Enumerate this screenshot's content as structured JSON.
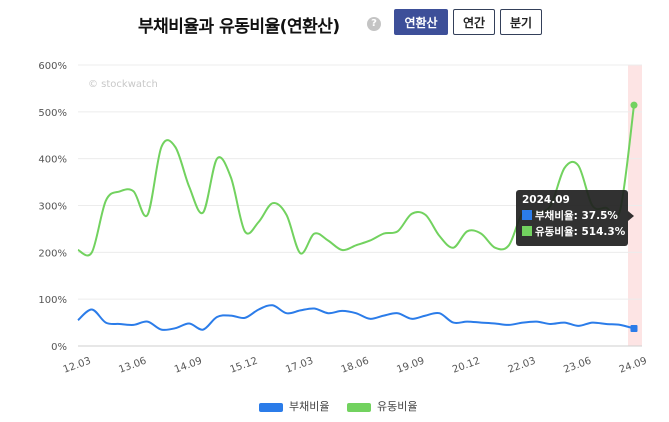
{
  "header": {
    "title": "부채비율과 유동비율(연환산)",
    "help_icon": "question-circle-icon",
    "help_glyph": "?",
    "period_buttons": [
      {
        "label": "연환산",
        "active": true
      },
      {
        "label": "연간",
        "active": false
      },
      {
        "label": "분기",
        "active": false
      }
    ]
  },
  "watermark": "© stockwatch",
  "tooltip": {
    "title": "2024.09",
    "rows": [
      {
        "label": "부채비율: 37.5%",
        "color": "#2b7ce9"
      },
      {
        "label": "유동비율: 514.3%",
        "color": "#72d25f"
      }
    ]
  },
  "chart_data": {
    "type": "line",
    "ylim": [
      0,
      600
    ],
    "yticks": [
      "0%",
      "100%",
      "200%",
      "300%",
      "400%",
      "500%",
      "600%"
    ],
    "xticks": [
      "12.03",
      "13.06",
      "14.09",
      "15.12",
      "17.03",
      "18.06",
      "19.09",
      "20.12",
      "22.03",
      "23.06",
      "24.09"
    ],
    "highlight_period": "2024.09",
    "series": [
      {
        "name": "부채비율",
        "color": "#2b7ce9",
        "values": [
          55,
          78,
          50,
          47,
          45,
          52,
          35,
          38,
          48,
          35,
          62,
          65,
          60,
          78,
          87,
          70,
          76,
          80,
          70,
          75,
          70,
          58,
          65,
          70,
          58,
          65,
          70,
          50,
          52,
          50,
          48,
          45,
          50,
          52,
          47,
          50,
          43,
          50,
          47,
          45,
          37.5
        ]
      },
      {
        "name": "유동비율",
        "color": "#72d25f",
        "values": [
          205,
          200,
          310,
          330,
          330,
          280,
          425,
          425,
          340,
          285,
          400,
          360,
          245,
          265,
          305,
          280,
          198,
          240,
          225,
          205,
          215,
          225,
          240,
          245,
          282,
          280,
          235,
          210,
          245,
          240,
          210,
          215,
          285,
          285,
          300,
          380,
          385,
          300,
          295,
          290,
          514.3
        ]
      }
    ]
  }
}
